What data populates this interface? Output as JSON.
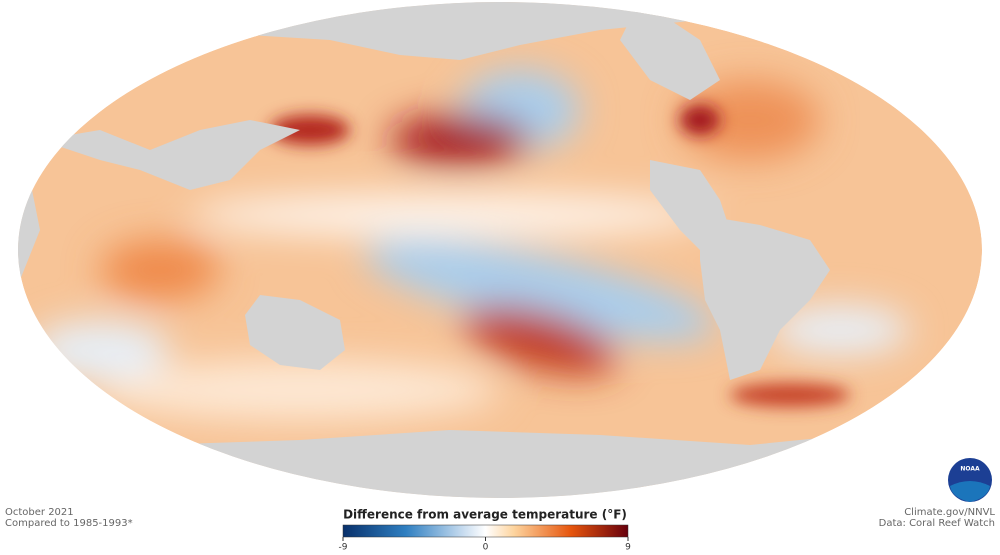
{
  "footer_left": {
    "line1": "October 2021",
    "line2": "Compared to 1985-1993*"
  },
  "footer_right": {
    "line1": "Climate.gov/NNVL",
    "line2": "Data: Coral Reef Watch"
  },
  "logo": {
    "text": "NOAA"
  },
  "colorbar": {
    "title": "Difference from average temperature (°F)",
    "lim": [
      -9,
      9
    ],
    "ticks": [
      -9,
      0,
      9
    ]
  }
}
